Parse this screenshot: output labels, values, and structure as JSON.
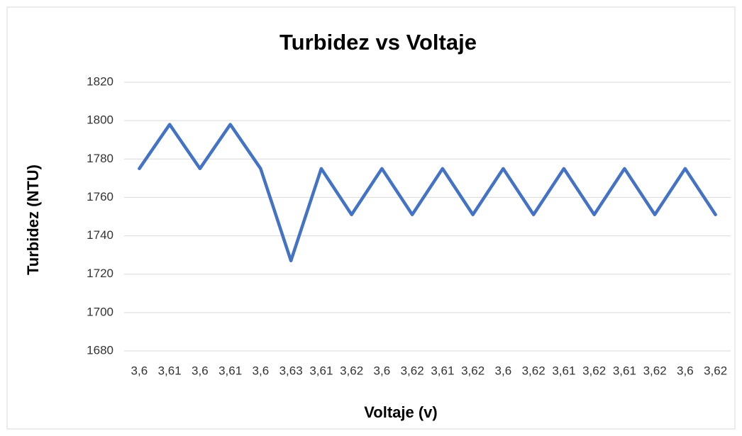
{
  "chart_data": {
    "type": "line",
    "title": "Turbidez vs Voltaje",
    "x_label": "Voltaje (v)",
    "y_label": "Turbidez (NTU)",
    "categories": [
      "3,6",
      "3,61",
      "3,6",
      "3,61",
      "3,6",
      "3,63",
      "3,61",
      "3,62",
      "3,6",
      "3,62",
      "3,61",
      "3,62",
      "3,6",
      "3,62",
      "3,61",
      "3,62",
      "3,61",
      "3,62",
      "3,6",
      "3,62"
    ],
    "series": [
      {
        "name": "Turbidez",
        "color": "#4472c4",
        "values": [
          1775,
          1798,
          1775,
          1798,
          1775,
          1727,
          1775,
          1751,
          1775,
          1751,
          1775,
          1751,
          1775,
          1751,
          1775,
          1751,
          1775,
          1751,
          1775,
          1751
        ]
      }
    ],
    "ylim": [
      1680,
      1820
    ],
    "yticks": [
      1680,
      1700,
      1720,
      1740,
      1760,
      1780,
      1800,
      1820
    ],
    "grid": true
  }
}
